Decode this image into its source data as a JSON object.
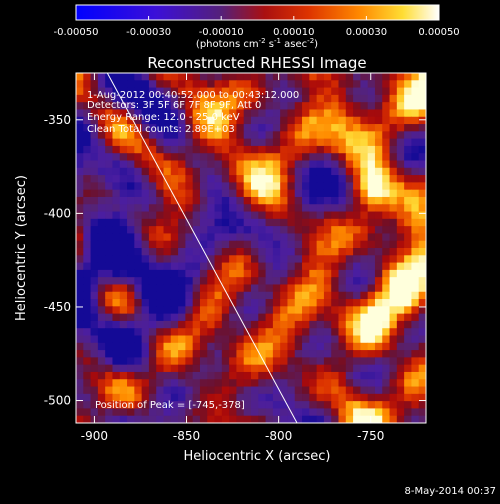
{
  "chart_data": {
    "type": "heatmap",
    "title": "Reconstructed RHESSI Image",
    "xlabel": "Heliocentric X (arcsec)",
    "ylabel": "Heliocentric Y (arcsec)",
    "xlim": [
      -910,
      -720
    ],
    "ylim": [
      -512,
      -325
    ],
    "xticks": [
      -900,
      -850,
      -800,
      -750
    ],
    "yticks": [
      -350,
      -400,
      -450,
      -500
    ],
    "colorbar": {
      "range": [
        -0.0005,
        0.0005
      ],
      "ticks": [
        "-0.00050",
        "-0.00030",
        "-0.00010",
        "0.00010",
        "0.00030",
        "0.00050"
      ],
      "units_prefix": "(photons cm",
      "units_exp1": "-2",
      "units_mid": " s",
      "units_exp2": "-1",
      "units_mid2": " asec",
      "units_exp3": "-2",
      "units_suffix": ")"
    },
    "annotations": [
      "1-Aug-2012 00:40:52.000 to 00:43:12.000",
      "Detectors: 3F 5F 6F 7F 8F 9F, Att 0",
      "Energy Range: 12.0 - 25.0 keV",
      "Clean    Total counts: 2.89E+03"
    ],
    "peak_label": "Position of Peak = [-745,-378]",
    "peak": [
      -745,
      -378
    ],
    "limb_line": [
      [
        -893,
        -325
      ],
      [
        -790,
        -512
      ]
    ],
    "grid_resolution": [
      48,
      48
    ]
  },
  "footer": {
    "date": "8-May-2014 00:37"
  }
}
